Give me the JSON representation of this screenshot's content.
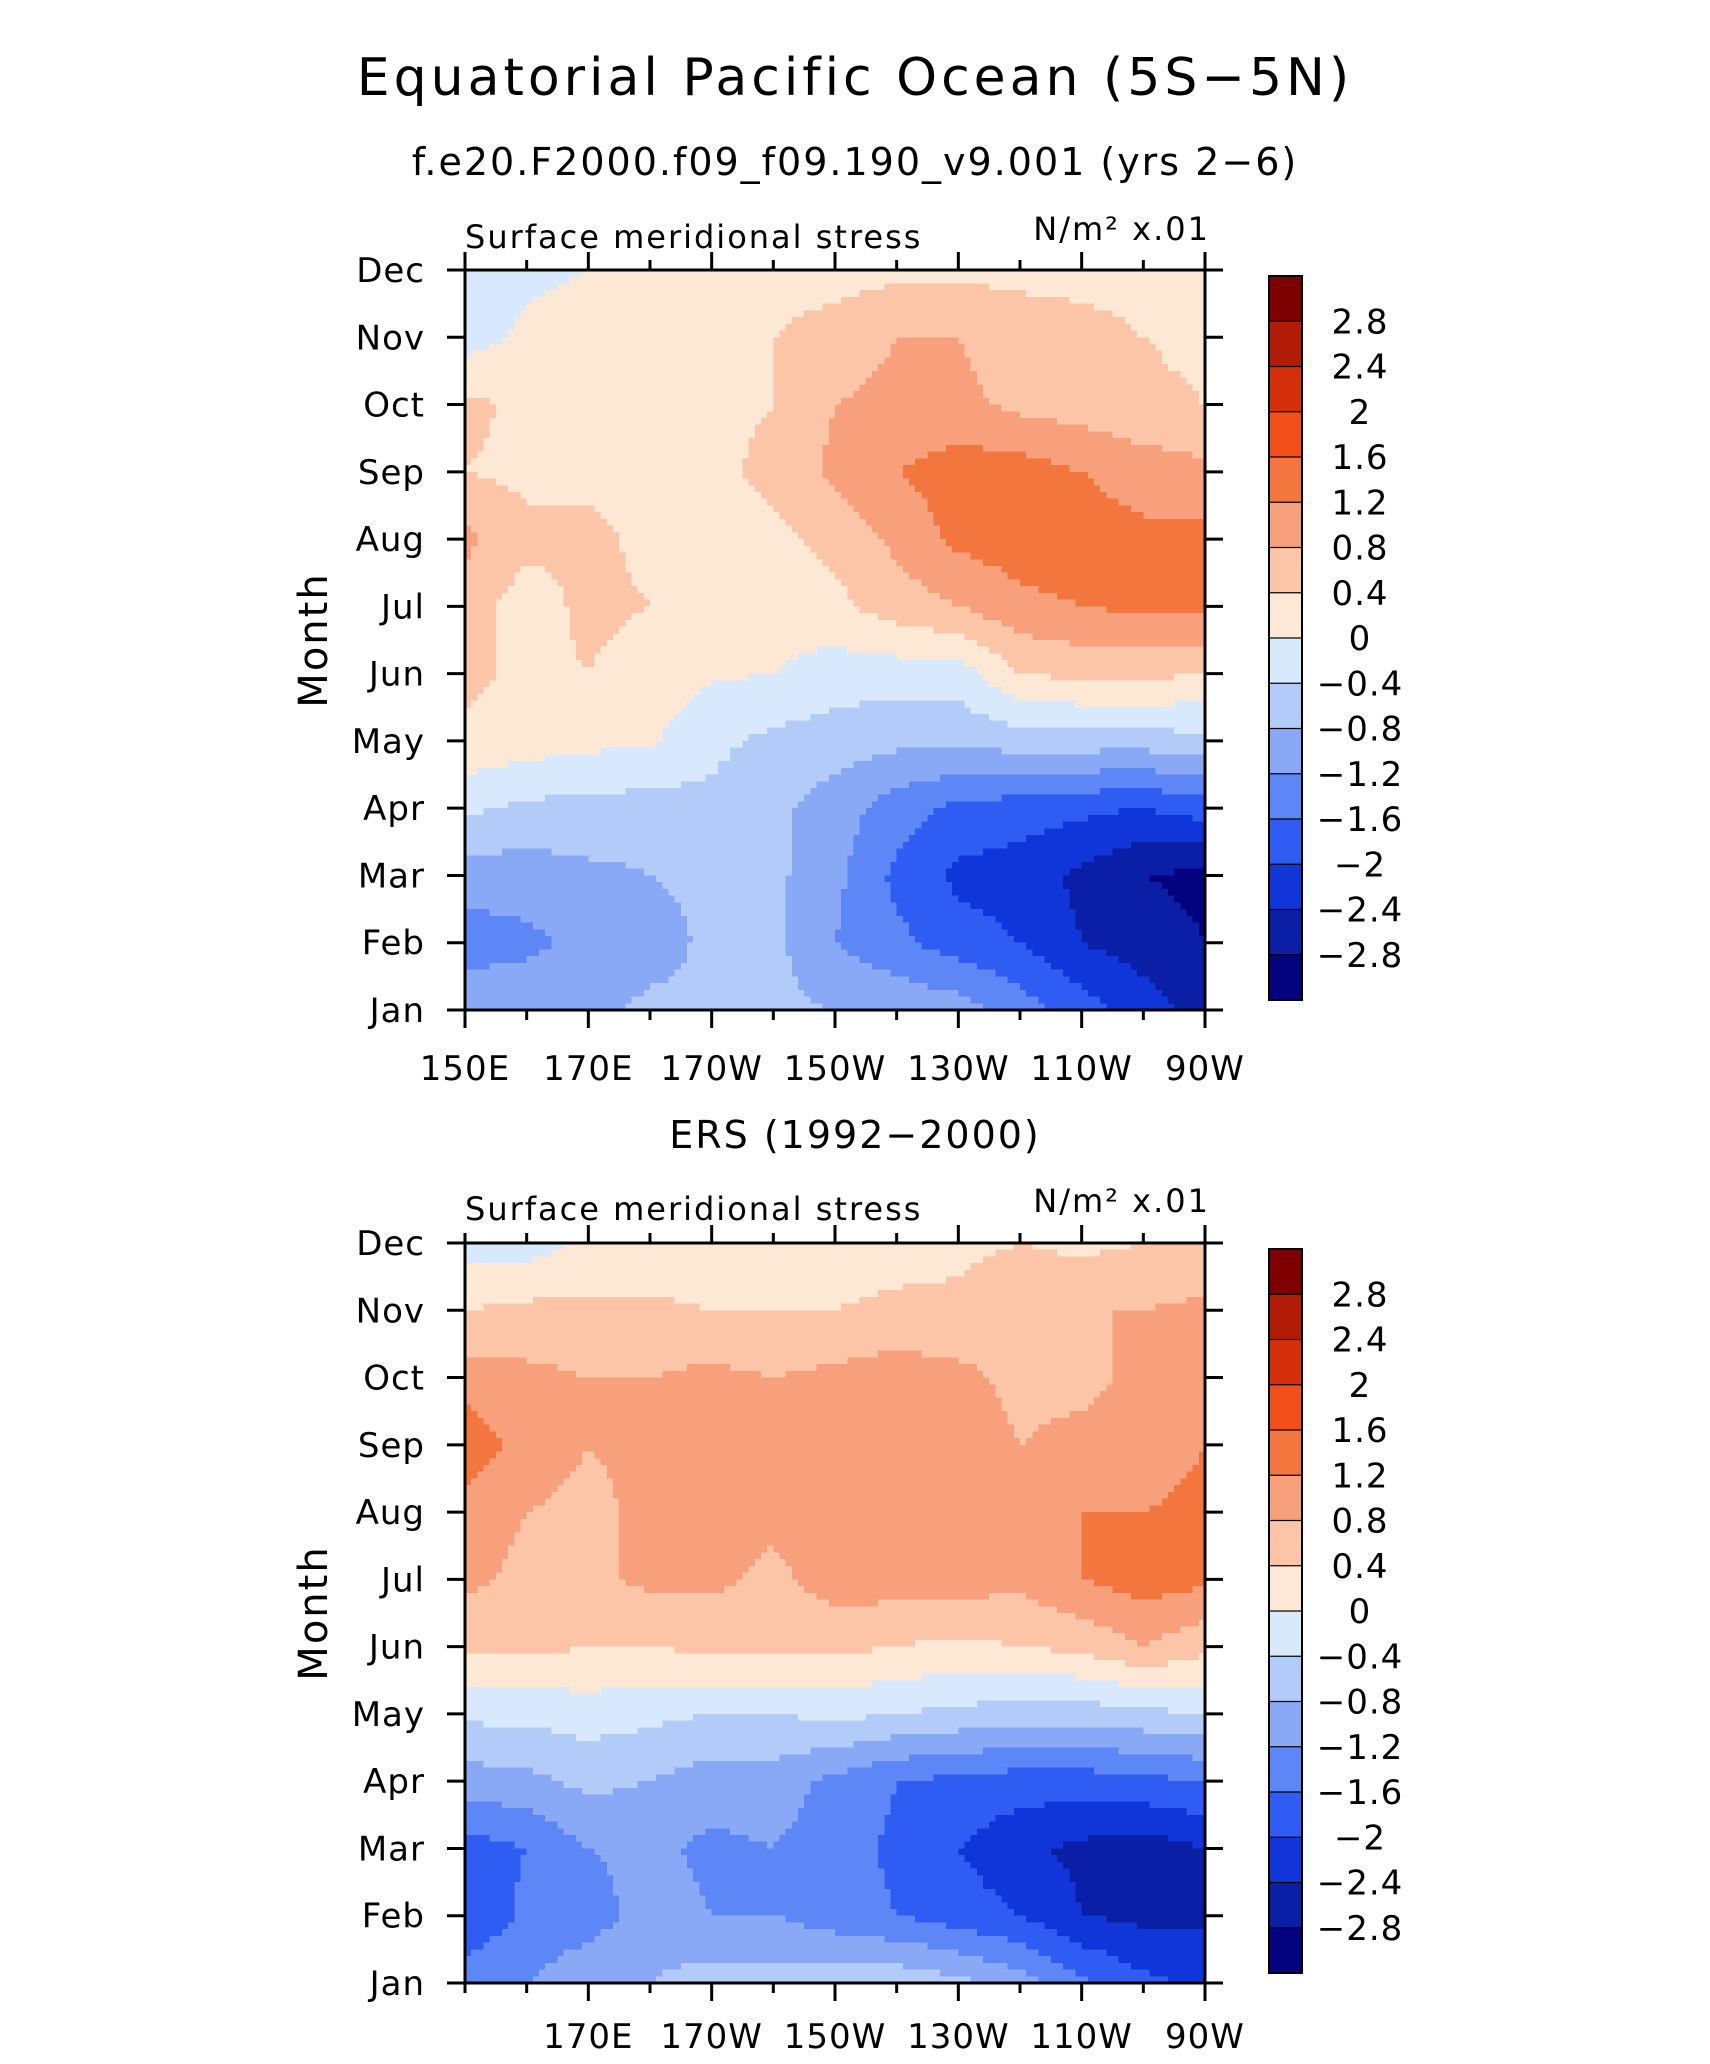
{
  "figure": {
    "title": "Equatorial Pacific Ocean (5S−5N)"
  },
  "panels_meta": {
    "month_labels": [
      "Jan",
      "Feb",
      "Mar",
      "Apr",
      "May",
      "Jun",
      "Jul",
      "Aug",
      "Sep",
      "Oct",
      "Nov",
      "Dec"
    ],
    "colorbar_levels": [
      "2.8",
      "2.4",
      "2",
      "1.6",
      "1.2",
      "0.8",
      "0.4",
      "0",
      "−0.4",
      "−0.8",
      "−1.2",
      "−1.6",
      "−2",
      "−2.4",
      "−2.8"
    ],
    "colorbar_colors": [
      "#7f0000",
      "#b21b06",
      "#d62f0b",
      "#f24f1b",
      "#f4763f",
      "#f8a07c",
      "#fcc5a8",
      "#fde8d6",
      "#d8e8fd",
      "#b3cbf9",
      "#89a8f5",
      "#5d86f6",
      "#2f5cf3",
      "#1035d9",
      "#0a1fa6",
      "#04027f"
    ]
  },
  "chart_data": [
    {
      "type": "heatmap",
      "panel_title": "f.e20.F2000.f09_f09.190_v9.001 (yrs 2−6)",
      "variable": "Surface meridional stress",
      "units": "N/m² x.01",
      "ylabel": "Month",
      "x_tick_labels": [
        "150E",
        "170E",
        "170W",
        "150W",
        "130W",
        "110W",
        "90W"
      ],
      "x_tick_lon": [
        150,
        170,
        190,
        210,
        230,
        250,
        270
      ],
      "xlim": [
        150,
        270
      ],
      "ylim": [
        1,
        12
      ],
      "levels": [
        -2.8,
        -2.4,
        -2,
        -1.6,
        -1.2,
        -0.8,
        -0.4,
        0,
        0.4,
        0.8,
        1.2,
        1.6,
        2,
        2.4,
        2.8
      ],
      "x": [
        150,
        160,
        170,
        180,
        190,
        200,
        210,
        220,
        230,
        240,
        250,
        260,
        270
      ],
      "y": [
        1,
        2,
        3,
        4,
        5,
        6,
        7,
        8,
        9,
        10,
        11,
        12
      ],
      "z": [
        [
          -0.9,
          -0.9,
          -0.9,
          -0.7,
          -0.7,
          -0.7,
          -0.8,
          -0.9,
          -1.0,
          -1.4,
          -1.8,
          -2.2,
          -2.6
        ],
        [
          -1.4,
          -1.3,
          -1.1,
          -1.0,
          -0.7,
          -0.7,
          -1.2,
          -1.5,
          -1.8,
          -2.0,
          -2.4,
          -2.6,
          -2.8
        ],
        [
          -1.0,
          -1.0,
          -0.9,
          -0.8,
          -0.7,
          -0.7,
          -1.1,
          -1.7,
          -2.1,
          -2.2,
          -2.5,
          -2.8,
          -2.9
        ],
        [
          -0.3,
          -0.5,
          -0.5,
          -0.6,
          -0.5,
          -0.7,
          -1.0,
          -1.4,
          -1.7,
          -1.8,
          -1.9,
          -2.0,
          -1.8
        ],
        [
          0.3,
          0.2,
          0.1,
          0.05,
          -0.3,
          -0.5,
          -0.6,
          -0.7,
          -0.7,
          -0.6,
          -0.6,
          -0.6,
          -0.5
        ],
        [
          0.5,
          0.3,
          0.4,
          0.2,
          0.05,
          0.0,
          -0.2,
          -0.2,
          -0.2,
          0.4,
          0.5,
          0.5,
          0.4
        ],
        [
          0.6,
          0.2,
          0.5,
          0.4,
          0.2,
          0.2,
          0.3,
          0.6,
          0.8,
          1.1,
          1.2,
          1.3,
          1.3
        ],
        [
          0.9,
          0.5,
          0.5,
          0.3,
          0.2,
          0.3,
          0.5,
          0.9,
          1.3,
          1.4,
          1.4,
          1.3,
          1.3
        ],
        [
          0.4,
          0.3,
          0.3,
          0.3,
          0.3,
          0.5,
          0.9,
          1.2,
          1.4,
          1.4,
          1.2,
          1.0,
          0.9
        ],
        [
          0.5,
          0.3,
          0.3,
          0.3,
          0.3,
          0.4,
          0.8,
          0.9,
          0.9,
          0.7,
          0.6,
          0.5,
          0.4
        ],
        [
          -0.2,
          0.1,
          0.2,
          0.2,
          0.3,
          0.4,
          0.6,
          0.8,
          0.8,
          0.6,
          0.5,
          0.4,
          0.3
        ],
        [
          -0.3,
          -0.1,
          0.0,
          0.1,
          0.2,
          0.2,
          0.2,
          0.3,
          0.3,
          0.3,
          0.3,
          0.3,
          0.2
        ]
      ]
    },
    {
      "type": "heatmap",
      "panel_title": "ERS (1992−2000)",
      "variable": "Surface meridional stress",
      "units": "N/m² x.01",
      "ylabel": "Month",
      "x_tick_labels": [
        "170E",
        "170W",
        "150W",
        "130W",
        "110W",
        "90W"
      ],
      "x_tick_lon": [
        170,
        190,
        210,
        230,
        250,
        270
      ],
      "xlim": [
        150,
        270
      ],
      "ylim": [
        1,
        12
      ],
      "levels": [
        -2.8,
        -2.4,
        -2,
        -1.6,
        -1.2,
        -0.8,
        -0.4,
        0,
        0.4,
        0.8,
        1.2,
        1.6,
        2,
        2.4,
        2.8
      ],
      "x": [
        150,
        160,
        170,
        180,
        190,
        200,
        210,
        220,
        230,
        240,
        250,
        260,
        270
      ],
      "y": [
        1,
        2,
        3,
        4,
        5,
        6,
        7,
        8,
        9,
        10,
        11,
        12
      ],
      "z": [
        [
          -1.3,
          -1.2,
          -0.9,
          -0.8,
          -0.6,
          -0.6,
          -0.6,
          -0.5,
          -0.7,
          -1.0,
          -1.5,
          -1.9,
          -2.1
        ],
        [
          -2.0,
          -1.5,
          -1.4,
          -1.0,
          -1.2,
          -1.2,
          -1.4,
          -1.6,
          -1.8,
          -2.0,
          -2.4,
          -2.5,
          -2.5
        ],
        [
          -1.8,
          -1.6,
          -1.2,
          -1.1,
          -1.3,
          -1.2,
          -1.4,
          -1.7,
          -2.0,
          -2.3,
          -2.5,
          -2.6,
          -2.4
        ],
        [
          -1.0,
          -0.9,
          -0.7,
          -0.8,
          -1.0,
          -1.0,
          -1.3,
          -1.6,
          -1.7,
          -1.8,
          -1.8,
          -1.7,
          -1.6
        ],
        [
          -0.3,
          -0.3,
          -0.2,
          -0.3,
          -0.4,
          -0.4,
          -0.3,
          -0.4,
          -0.5,
          -0.6,
          -0.6,
          -0.5,
          -0.4
        ],
        [
          0.5,
          0.5,
          0.4,
          0.4,
          0.5,
          0.5,
          0.5,
          0.4,
          0.3,
          0.4,
          0.5,
          0.8,
          0.5
        ],
        [
          0.9,
          0.7,
          0.7,
          0.9,
          0.9,
          0.7,
          1.0,
          1.0,
          1.0,
          0.9,
          1.2,
          1.4,
          1.3
        ],
        [
          1.0,
          0.8,
          0.7,
          0.9,
          1.0,
          0.9,
          1.0,
          1.1,
          1.1,
          1.0,
          1.2,
          1.2,
          1.3
        ],
        [
          1.5,
          1.0,
          0.8,
          0.9,
          1.0,
          1.1,
          1.0,
          1.1,
          1.0,
          0.8,
          0.9,
          1.0,
          1.2
        ],
        [
          1.0,
          0.9,
          0.8,
          0.8,
          0.9,
          0.8,
          0.9,
          1.0,
          0.9,
          0.7,
          0.7,
          0.9,
          1.1
        ],
        [
          0.4,
          0.5,
          0.5,
          0.5,
          0.4,
          0.4,
          0.4,
          0.5,
          0.5,
          0.7,
          0.8,
          0.8,
          0.9
        ],
        [
          -0.2,
          -0.2,
          0.1,
          0.0,
          0.1,
          0.2,
          0.2,
          0.2,
          0.3,
          0.4,
          0.3,
          0.4,
          0.4
        ]
      ]
    }
  ]
}
